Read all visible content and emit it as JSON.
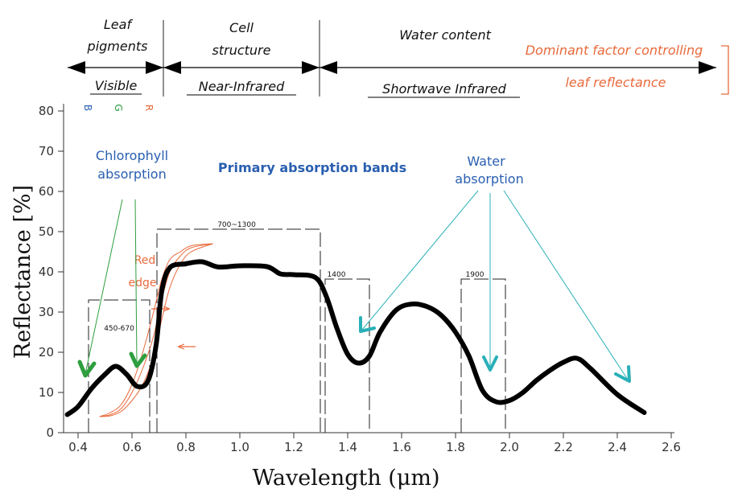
{
  "header": {
    "leaf_pigments_1": "Leaf",
    "leaf_pigments_2": "pigments",
    "cell_structure_1": "Cell",
    "cell_structure_2": "structure",
    "water_content": "Water content",
    "dominant_1": "Dominant factor controlling",
    "dominant_2": "leaf reflectance",
    "visible": "Visible",
    "near_infrared": "Near-Infrared",
    "shortwave_infrared": "Shortwave Infrared"
  },
  "annotations": {
    "chlorophyll_1": "Chlorophyll",
    "chlorophyll_2": "absorption",
    "primary_bands": "Primary   absorption bands",
    "water_1": "Water",
    "water_2": "absorption",
    "red_edge_1": "Red",
    "red_edge_2": "edge",
    "band_450_670": "450-670",
    "band_700_1300": "700~1300",
    "band_1400": "1400",
    "band_1900": "1900",
    "rgb_b": "B",
    "rgb_g": "G",
    "rgb_r": "R"
  },
  "colors": {
    "curve": "#000000",
    "orange": "#e86a3c",
    "blue_text": "#2a5fb0",
    "green_arrow": "#2e9e3e",
    "cyan_arrow": "#2ab0b8"
  },
  "chart_data": {
    "type": "line",
    "xlabel": "Wavelength (μm)",
    "ylabel": "Reflectance [%]",
    "xlim": [
      0.35,
      2.7
    ],
    "ylim": [
      0,
      85
    ],
    "xticks": [
      "0.4",
      "0.6",
      "0.8",
      "1.0",
      "1.2",
      "1.4",
      "1.6",
      "1.8",
      "2.0",
      "2.2",
      "2.4",
      "2.6"
    ],
    "yticks": [
      "0",
      "10",
      "20",
      "30",
      "40",
      "50",
      "60",
      "70",
      "80"
    ],
    "series": [
      {
        "x": [
          0.36,
          0.4,
          0.45,
          0.5,
          0.54,
          0.58,
          0.62,
          0.66,
          0.69,
          0.71,
          0.74,
          0.8,
          0.86,
          0.92,
          1.0,
          1.1,
          1.15,
          1.2,
          1.28,
          1.32,
          1.36,
          1.4,
          1.44,
          1.48,
          1.52,
          1.58,
          1.64,
          1.7,
          1.75,
          1.8,
          1.85,
          1.9,
          1.95,
          2.0,
          2.05,
          2.1,
          2.15,
          2.2,
          2.25,
          2.3,
          2.4,
          2.5
        ],
        "y": [
          4.5,
          6.5,
          11,
          14.5,
          16.5,
          14.5,
          11.5,
          13,
          22,
          35,
          41,
          42,
          42.5,
          41.2,
          41.5,
          41.3,
          39.5,
          39.3,
          38.6,
          34,
          26,
          19.5,
          17.3,
          19,
          25,
          30.5,
          32,
          31.2,
          29,
          25,
          19,
          10.5,
          7.7,
          8,
          10,
          13,
          15.5,
          17.5,
          18.5,
          16,
          9.5,
          5
        ]
      },
      {
        "x": [
          0.48,
          0.52,
          0.56,
          0.6,
          0.64,
          0.68,
          0.71,
          0.74,
          0.78,
          0.82,
          0.9
        ],
        "y": [
          4,
          5,
          7,
          12,
          20,
          30,
          38,
          43,
          45,
          46.5,
          47
        ]
      },
      {
        "x": [
          0.48,
          0.52,
          0.56,
          0.6,
          0.64,
          0.68,
          0.71,
          0.74,
          0.78,
          0.82,
          0.9
        ],
        "y": [
          4,
          4.5,
          6,
          10,
          16,
          24,
          33,
          40,
          44,
          46,
          47
        ]
      },
      {
        "x": [
          0.48,
          0.52,
          0.56,
          0.6,
          0.64,
          0.68,
          0.71,
          0.74,
          0.78,
          0.82,
          0.9
        ],
        "y": [
          4,
          4.2,
          5.3,
          8,
          12,
          19,
          28,
          36,
          42,
          45,
          47
        ]
      }
    ]
  }
}
